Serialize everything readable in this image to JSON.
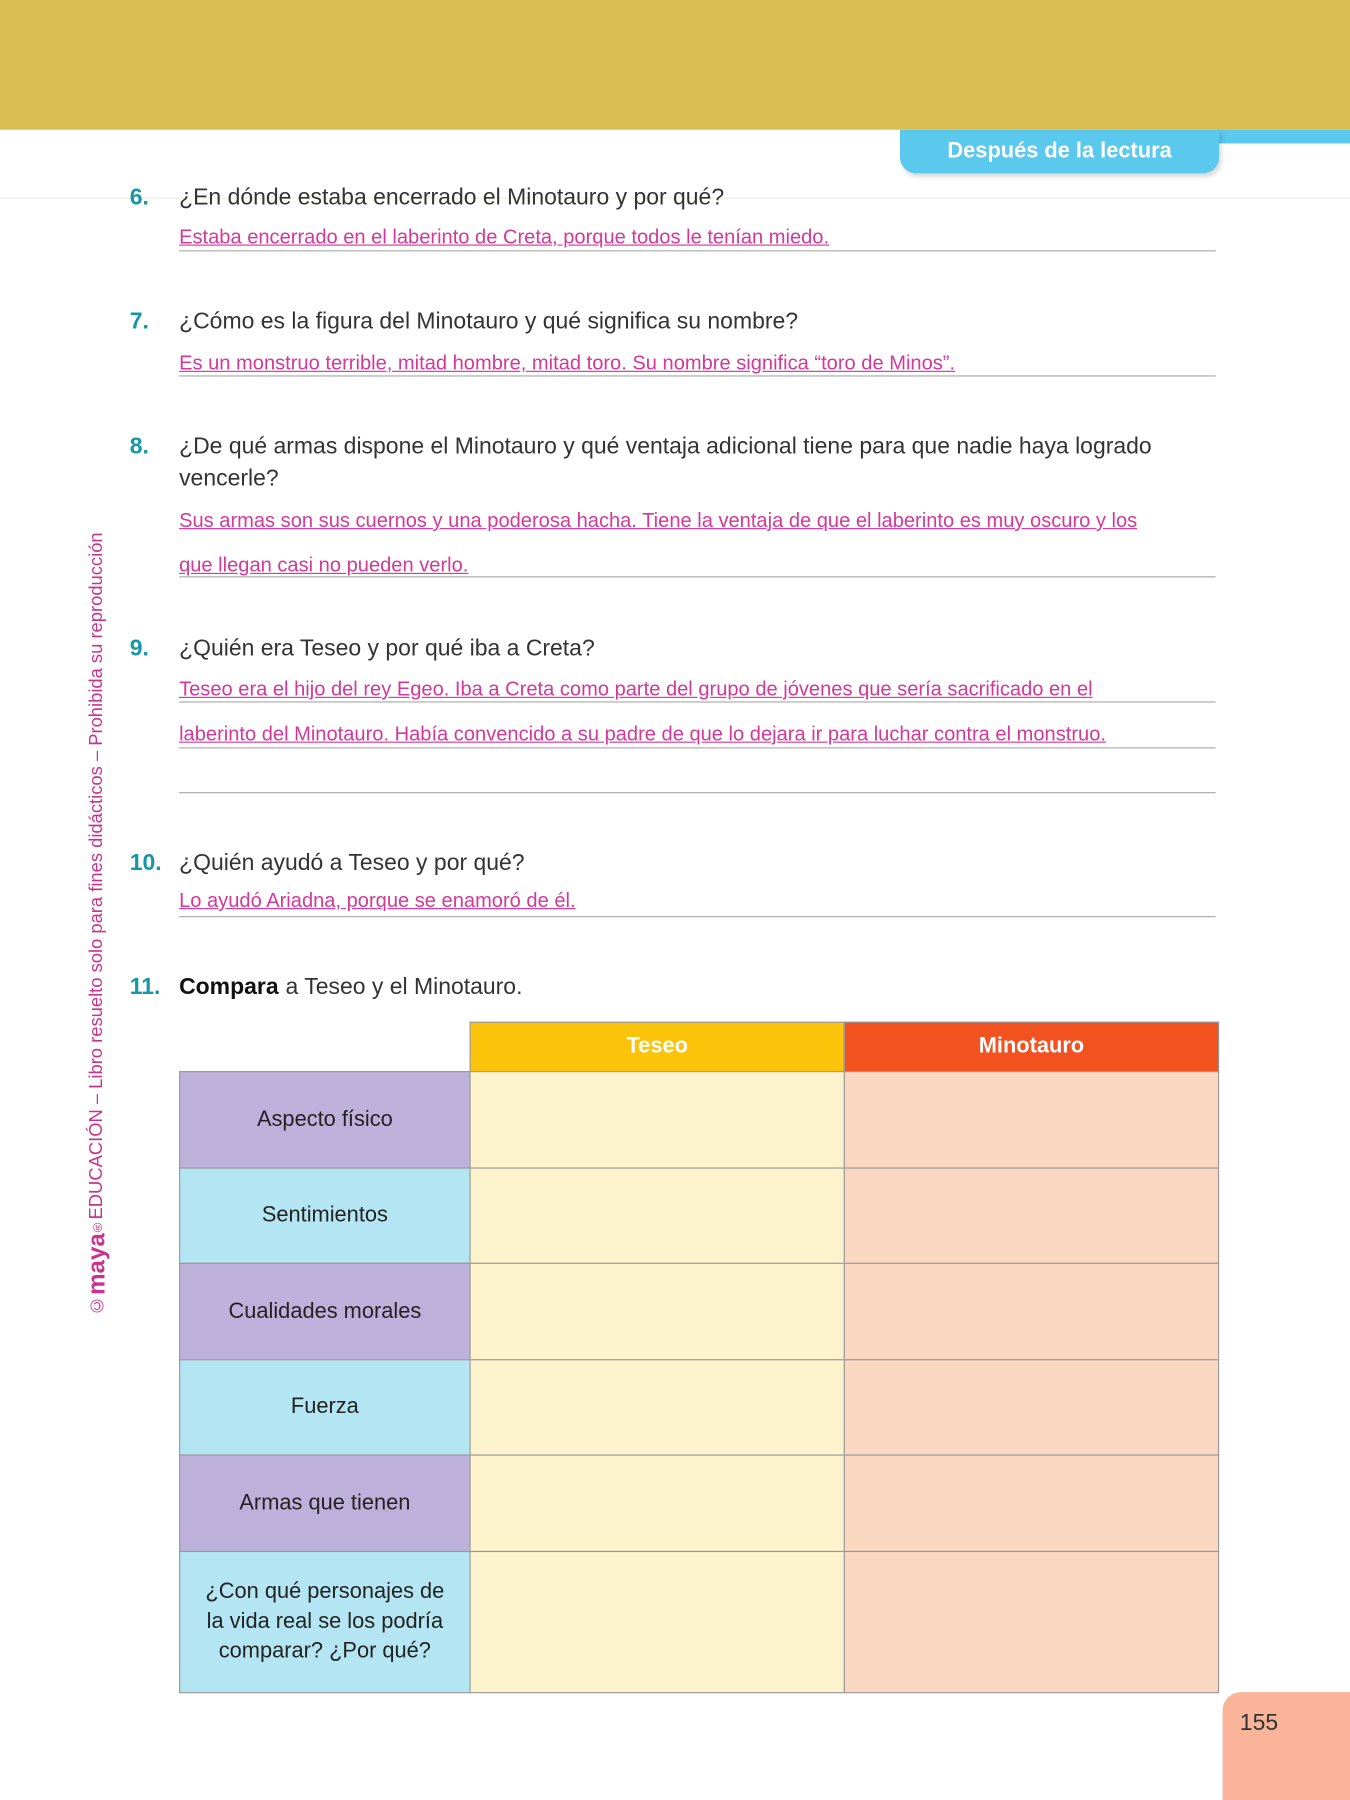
{
  "header": {
    "section": "Después de la lectura"
  },
  "sidebar": {
    "copyright": "©",
    "brand": "maya",
    "registered": "®",
    "text": "EDUCACIÓN – Libro resuelto solo para fines didácticos – Prohibida su reproducción"
  },
  "questions": [
    {
      "number": "6.",
      "text": "¿En dónde estaba encerrado el Minotauro y por qué?",
      "answer": [
        "Estaba encerrado en el laberinto de Creta, porque todos le tenían miedo."
      ]
    },
    {
      "number": "7.",
      "text": "¿Cómo es la figura del Minotauro y qué significa su nombre?",
      "answer": [
        "Es un monstruo terrible, mitad hombre, mitad toro. Su nombre significa “toro de Minos”."
      ]
    },
    {
      "number": "8.",
      "text": "¿De qué armas dispone el Minotauro y qué ventaja adicional tiene para que nadie haya logrado vencerle?",
      "answer": [
        "Sus armas son sus cuernos y una poderosa hacha. Tiene la ventaja de que el laberinto es muy oscuro y los",
        "que llegan casi no pueden verlo."
      ]
    },
    {
      "number": "9.",
      "text": "¿Quién era Teseo y por qué iba a Creta?",
      "answer": [
        "Teseo era el hijo del rey Egeo. Iba a Creta como parte del grupo de jóvenes que sería sacrificado en el",
        "laberinto del Minotauro. Había convencido a su padre de que lo dejara ir para luchar contra el monstruo."
      ]
    },
    {
      "number": "10.",
      "text": "¿Quién ayudó a Teseo y por qué?",
      "answer": [
        "Lo ayudó Ariadna, porque se enamoró de él."
      ]
    },
    {
      "number": "11.",
      "emphasis": "Compara",
      "text": "a Teseo y el Minotauro."
    }
  ],
  "table": {
    "columns": [
      "Teseo",
      "Minotauro"
    ],
    "rows": [
      "Aspecto físico",
      "Sentimientos",
      "Cualidades morales",
      "Fuerza",
      "Armas que tienen",
      "¿Con qué personajes de la vida real se los podría comparar? ¿Por qué?"
    ]
  },
  "page_number": "155"
}
